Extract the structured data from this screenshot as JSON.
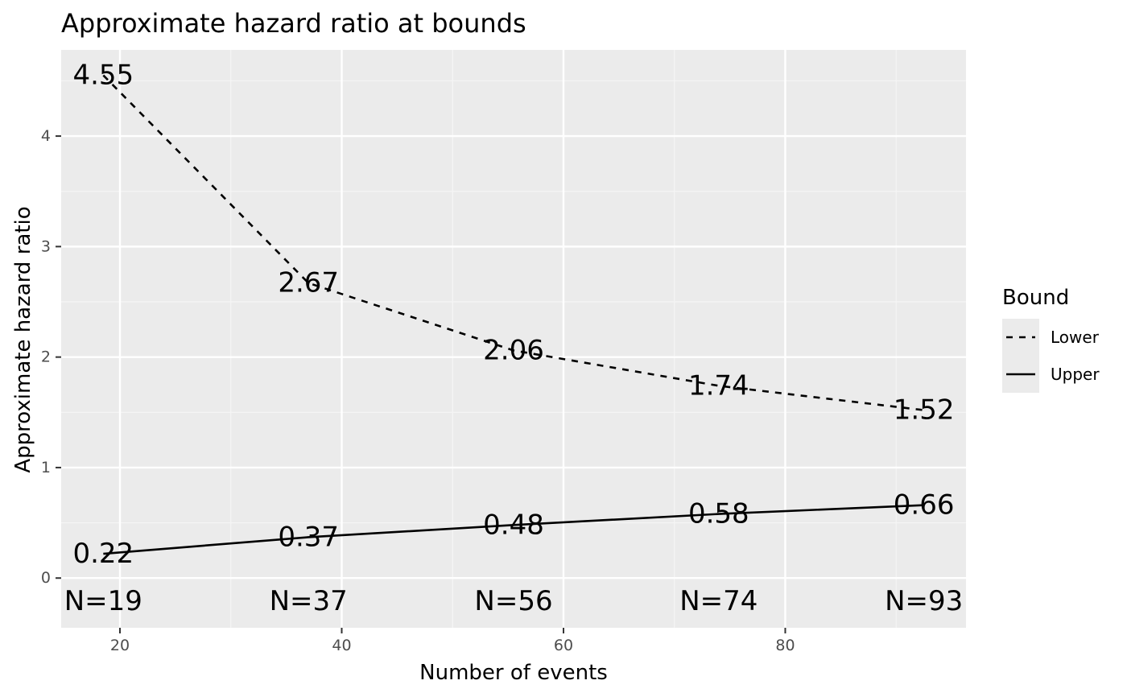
{
  "chart_data": {
    "type": "line",
    "title": "Approximate hazard ratio at bounds",
    "xlabel": "Number of events",
    "ylabel": "Approximate hazard ratio",
    "xlim": [
      14.7,
      96.3
    ],
    "ylim": [
      -0.45,
      4.78
    ],
    "x_ticks": [
      20,
      40,
      60,
      80
    ],
    "y_ticks": [
      0,
      1,
      2,
      3,
      4
    ],
    "grid": true,
    "legend_position": "right",
    "legend_title": "Bound",
    "x": [
      18.5,
      37,
      55.5,
      74,
      92.5
    ],
    "series": [
      {
        "name": "Lower",
        "linetype": "dashed",
        "color": "#000000",
        "values": [
          4.55,
          2.67,
          2.06,
          1.74,
          1.52
        ],
        "labels": [
          "4.55",
          "2.67",
          "2.06",
          "1.74",
          "1.52"
        ]
      },
      {
        "name": "Upper",
        "linetype": "solid",
        "color": "#000000",
        "values": [
          0.22,
          0.37,
          0.48,
          0.58,
          0.66
        ],
        "labels": [
          "0.22",
          "0.37",
          "0.48",
          "0.58",
          "0.66"
        ]
      }
    ],
    "n_labels": {
      "y": -0.21,
      "text": [
        "N=19",
        "N=37",
        "N=56",
        "N=74",
        "N=93"
      ]
    },
    "colors": {
      "panel": "#ebebeb",
      "grid_major": "#ffffff",
      "grid_minor": "#f5f5f5",
      "tick": "#333333",
      "line": "#000000"
    }
  }
}
